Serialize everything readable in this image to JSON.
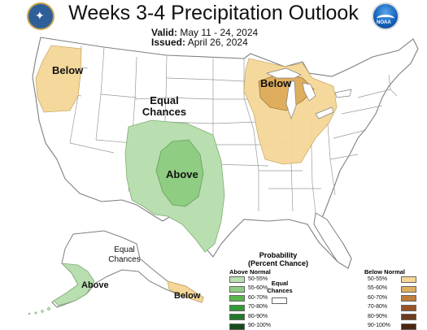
{
  "header": {
    "title": "Weeks 3-4 Precipitation Outlook",
    "valid_label": "Valid:",
    "valid_value": "May 11 - 24, 2024",
    "issued_label": "Issued:",
    "issued_value": "April 26, 2024"
  },
  "logos": {
    "left_icon": "noaa-doc-seal-icon",
    "right_icon": "noaa-logo-icon",
    "right_text": "NOAA"
  },
  "map_labels": {
    "northwest": "Below",
    "great_lakes": "Below",
    "central_equal_line1": "Equal",
    "central_equal_line2": "Chances",
    "southern_plains": "Above",
    "alaska_equal_line1": "Equal",
    "alaska_equal_line2": "Chances",
    "alaska_sw": "Above",
    "alaska_se": "Below"
  },
  "legend": {
    "title_line1": "Probability",
    "title_line2": "(Percent Chance)",
    "above_header": "Above Normal",
    "below_header": "Below Normal",
    "equal_line1": "Equal",
    "equal_line2": "Chances",
    "above_rows": [
      {
        "label": "50-55%",
        "color": "#b9deb0"
      },
      {
        "label": "55-60%",
        "color": "#8fcd82"
      },
      {
        "label": "60-70%",
        "color": "#5ab54b"
      },
      {
        "label": "70-80%",
        "color": "#2f9a36"
      },
      {
        "label": "80-90%",
        "color": "#217a2a"
      },
      {
        "label": "90-100%",
        "color": "#134d1a"
      }
    ],
    "below_rows": [
      {
        "label": "50-55%",
        "color": "#f5d797"
      },
      {
        "label": "55-60%",
        "color": "#deae5e"
      },
      {
        "label": "60-70%",
        "color": "#c07c39"
      },
      {
        "label": "70-80%",
        "color": "#9a5327"
      },
      {
        "label": "80-90%",
        "color": "#6f3a1c"
      },
      {
        "label": "90-100%",
        "color": "#4a2610"
      }
    ]
  },
  "colors": {
    "above_50": "#b9deb0",
    "above_55": "#8fcd82",
    "below_50": "#f5d797",
    "below_55": "#deae5e",
    "boundary": "#8a8a8a",
    "contour": "#7a6a4a"
  }
}
